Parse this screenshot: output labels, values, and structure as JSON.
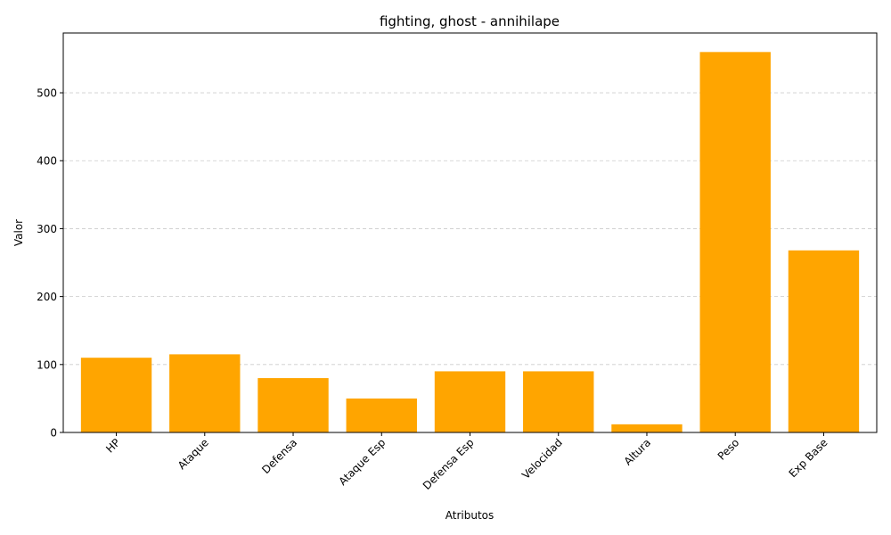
{
  "chart_data": {
    "type": "bar",
    "title": "fighting, ghost - annihilape",
    "xlabel": "Atributos",
    "ylabel": "Valor",
    "categories": [
      "HP",
      "Ataque",
      "Defensa",
      "Ataque Esp",
      "Defensa Esp",
      "Velocidad",
      "Altura",
      "Peso",
      "Exp Base"
    ],
    "values": [
      110,
      115,
      80,
      50,
      90,
      90,
      12,
      560,
      268
    ],
    "ylim": [
      0,
      588
    ],
    "yticks": [
      0,
      100,
      200,
      300,
      400,
      500
    ],
    "bar_color": "#ffa500",
    "grid": "y, dashed",
    "tick_rotation": 45
  }
}
